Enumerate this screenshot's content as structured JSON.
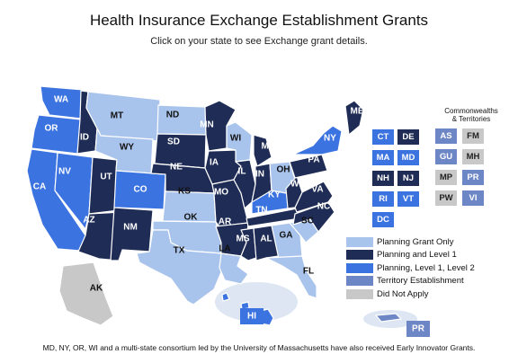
{
  "header": {
    "title": "Health Insurance Exchange Establishment Grants",
    "subtitle": "Click on your state to see Exchange grant details."
  },
  "colors": {
    "planning": "#a9c4ec",
    "level1": "#1f2c55",
    "level2": "#3b73e0",
    "territory": "#6d86c6",
    "not_applied": "#c8c8c8"
  },
  "states": [
    {
      "id": "WA",
      "cat": "level2",
      "label_color": "#ffffff"
    },
    {
      "id": "OR",
      "cat": "level2",
      "label_color": "#ffffff"
    },
    {
      "id": "CA",
      "cat": "level2",
      "label_color": "#ffffff"
    },
    {
      "id": "ID",
      "cat": "level1",
      "label_color": "#ffffff"
    },
    {
      "id": "NV",
      "cat": "level2",
      "label_color": "#ffffff"
    },
    {
      "id": "UT",
      "cat": "level1",
      "label_color": "#ffffff"
    },
    {
      "id": "AZ",
      "cat": "level1",
      "label_color": "#ffffff"
    },
    {
      "id": "MT",
      "cat": "planning",
      "label_color": "#111111"
    },
    {
      "id": "WY",
      "cat": "planning",
      "label_color": "#111111"
    },
    {
      "id": "CO",
      "cat": "level2",
      "label_color": "#ffffff"
    },
    {
      "id": "NM",
      "cat": "level1",
      "label_color": "#ffffff"
    },
    {
      "id": "ND",
      "cat": "planning",
      "label_color": "#111111"
    },
    {
      "id": "SD",
      "cat": "level1",
      "label_color": "#ffffff"
    },
    {
      "id": "NE",
      "cat": "level1",
      "label_color": "#ffffff"
    },
    {
      "id": "KS",
      "cat": "planning",
      "label_color": "#111111"
    },
    {
      "id": "OK",
      "cat": "planning",
      "label_color": "#111111"
    },
    {
      "id": "TX",
      "cat": "planning",
      "label_color": "#111111"
    },
    {
      "id": "MN",
      "cat": "level1",
      "label_color": "#ffffff"
    },
    {
      "id": "IA",
      "cat": "level1",
      "label_color": "#ffffff"
    },
    {
      "id": "MO",
      "cat": "level1",
      "label_color": "#ffffff"
    },
    {
      "id": "AR",
      "cat": "level1",
      "label_color": "#ffffff"
    },
    {
      "id": "LA",
      "cat": "planning",
      "label_color": "#111111"
    },
    {
      "id": "WI",
      "cat": "planning",
      "label_color": "#111111"
    },
    {
      "id": "IL",
      "cat": "level1",
      "label_color": "#ffffff"
    },
    {
      "id": "MI",
      "cat": "level1",
      "label_color": "#ffffff"
    },
    {
      "id": "IN",
      "cat": "level1",
      "label_color": "#ffffff"
    },
    {
      "id": "OH",
      "cat": "planning",
      "label_color": "#111111"
    },
    {
      "id": "KY",
      "cat": "level2",
      "label_color": "#ffffff"
    },
    {
      "id": "TN",
      "cat": "level1",
      "label_color": "#ffffff"
    },
    {
      "id": "MS",
      "cat": "level1",
      "label_color": "#ffffff"
    },
    {
      "id": "AL",
      "cat": "level1",
      "label_color": "#ffffff"
    },
    {
      "id": "GA",
      "cat": "planning",
      "label_color": "#111111"
    },
    {
      "id": "FL",
      "cat": "planning",
      "label_color": "#111111"
    },
    {
      "id": "SC",
      "cat": "planning",
      "label_color": "#111111"
    },
    {
      "id": "NC",
      "cat": "level1",
      "label_color": "#ffffff"
    },
    {
      "id": "VA",
      "cat": "level1",
      "label_color": "#ffffff"
    },
    {
      "id": "WV",
      "cat": "level1",
      "label_color": "#ffffff"
    },
    {
      "id": "PA",
      "cat": "level1",
      "label_color": "#ffffff"
    },
    {
      "id": "NY",
      "cat": "level2",
      "label_color": "#ffffff"
    },
    {
      "id": "ME",
      "cat": "level1",
      "label_color": "#ffffff"
    },
    {
      "id": "AK",
      "cat": "not_applied",
      "label_color": "#111111"
    },
    {
      "id": "HI",
      "cat": "level2",
      "label_color": "#ffffff"
    }
  ],
  "small_states": [
    {
      "id": "CT",
      "cat": "level2"
    },
    {
      "id": "DE",
      "cat": "level1"
    },
    {
      "id": "MA",
      "cat": "level2"
    },
    {
      "id": "MD",
      "cat": "level2"
    },
    {
      "id": "NH",
      "cat": "level1"
    },
    {
      "id": "NJ",
      "cat": "level1"
    },
    {
      "id": "RI",
      "cat": "level2"
    },
    {
      "id": "VT",
      "cat": "level2"
    },
    {
      "id": "DC",
      "cat": "level2"
    }
  ],
  "territories_heading": [
    "Commonwealths",
    "& Territories"
  ],
  "territories": [
    {
      "id": "AS",
      "cat": "territory"
    },
    {
      "id": "FM",
      "cat": "not_applied"
    },
    {
      "id": "GU",
      "cat": "territory"
    },
    {
      "id": "MH",
      "cat": "not_applied"
    },
    {
      "id": "MP",
      "cat": "not_applied"
    },
    {
      "id": "PR",
      "cat": "territory"
    },
    {
      "id": "PW",
      "cat": "not_applied"
    },
    {
      "id": "VI",
      "cat": "territory"
    }
  ],
  "puerto_rico_label": "PR",
  "legend": [
    {
      "label": "Planning Grant Only",
      "cat": "planning"
    },
    {
      "label": "Planning and Level 1",
      "cat": "level1"
    },
    {
      "label": "Planning, Level 1, Level 2",
      "cat": "level2"
    },
    {
      "label": "Territory Establishment",
      "cat": "territory"
    },
    {
      "label": "Did Not Apply",
      "cat": "not_applied"
    }
  ],
  "footnote": "MD, NY, OR, WI and a multi-state consortium led by the University of Massachusetts have also received Early Innovator Grants."
}
